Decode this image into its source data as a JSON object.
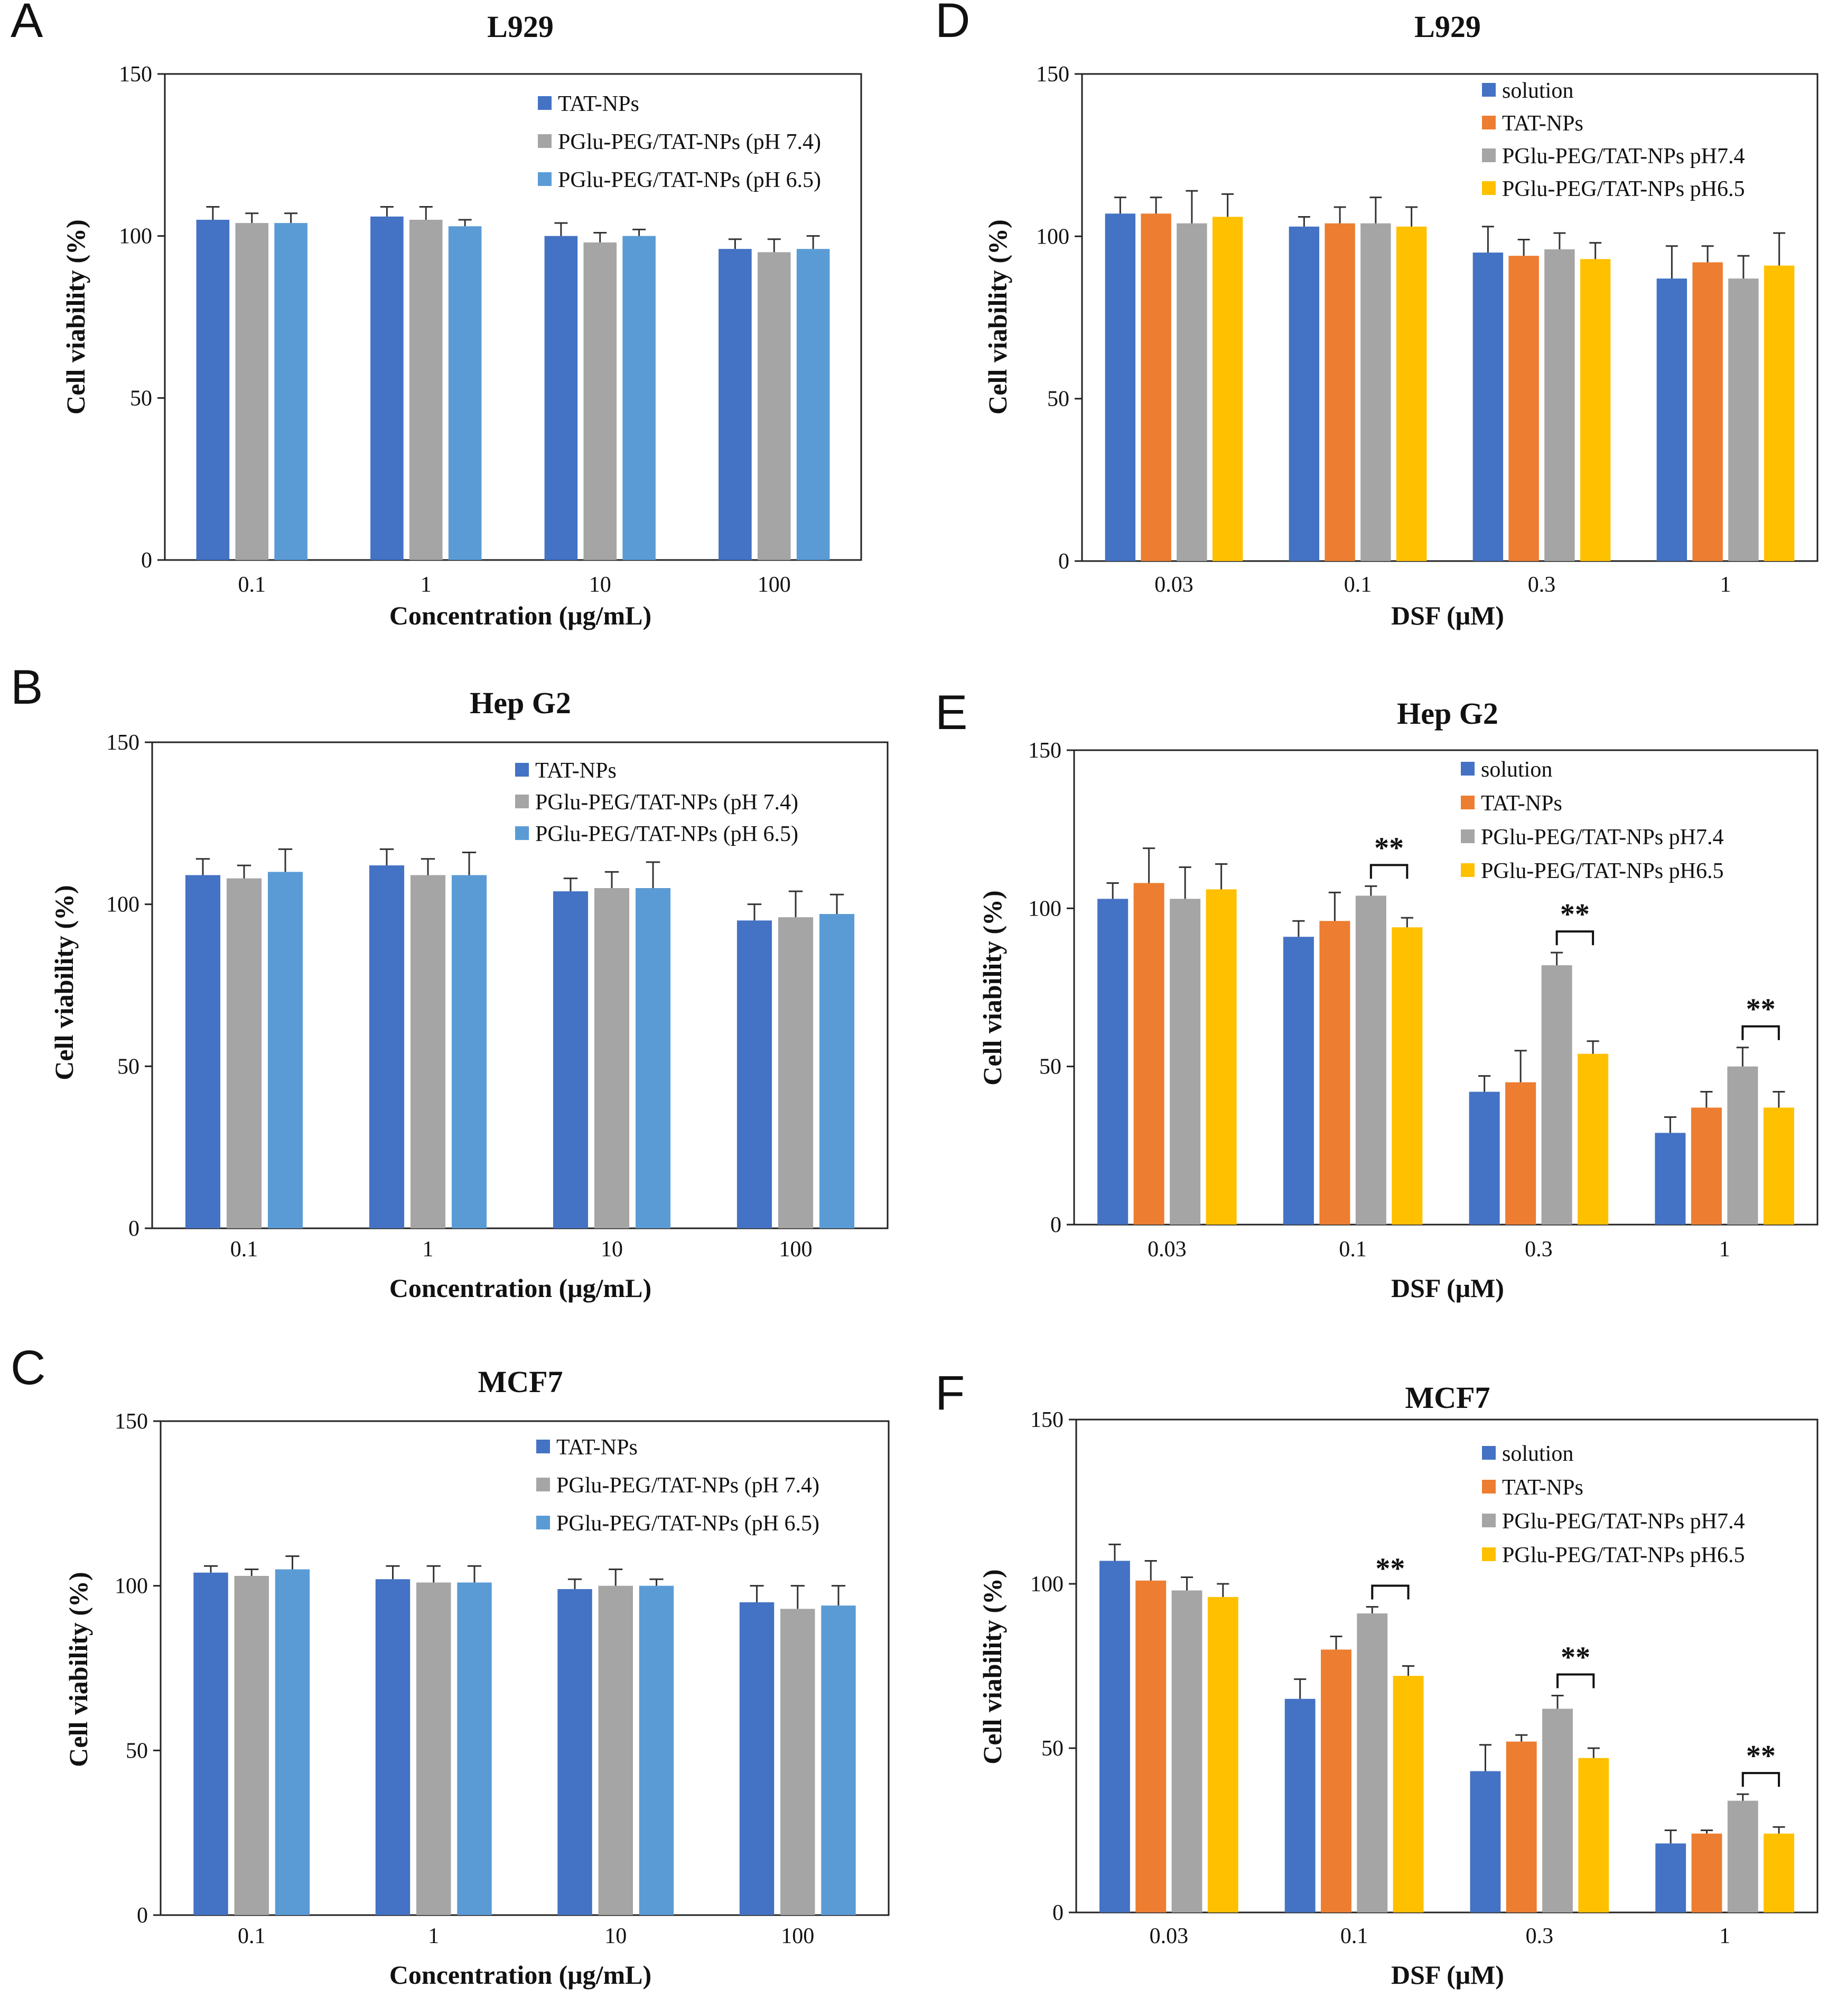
{
  "colors": {
    "solution": "#4472C4",
    "tat": "#4472C4",
    "tat_orange": "#ED7D31",
    "ph74": "#A5A5A5",
    "ph65_blue": "#5B9BD5",
    "ph65_yellow": "#FFC000"
  },
  "chart_data": [
    {
      "id": "A",
      "letter": "A",
      "type": "bar",
      "title": "L929",
      "xlabel": "Concentration (μg/mL)",
      "ylabel": "Cell viability (%)",
      "ylim": [
        0,
        150
      ],
      "yticks": [
        "0",
        "50",
        "100",
        "150"
      ],
      "categories": [
        "0.1",
        "1",
        "10",
        "100"
      ],
      "series": [
        {
          "name": "TAT-NPs",
          "color": "#4472C4",
          "values": [
            105,
            106,
            100,
            96
          ],
          "errors": [
            4,
            3,
            4,
            3
          ]
        },
        {
          "name": "PGlu-PEG/TAT-NPs (pH 7.4)",
          "color": "#A5A5A5",
          "values": [
            104,
            105,
            98,
            95
          ],
          "errors": [
            3,
            4,
            3,
            4
          ]
        },
        {
          "name": "PGlu-PEG/TAT-NPs (pH 6.5)",
          "color": "#5B9BD5",
          "values": [
            104,
            103,
            100,
            96
          ],
          "errors": [
            3,
            2,
            2,
            4
          ]
        }
      ],
      "significance": []
    },
    {
      "id": "B",
      "letter": "B",
      "type": "bar",
      "title": "Hep G2",
      "xlabel": "Concentration (μg/mL)",
      "ylabel": "Cell viability (%)",
      "ylim": [
        0,
        150
      ],
      "yticks": [
        "0",
        "50",
        "100",
        "150"
      ],
      "categories": [
        "0.1",
        "1",
        "10",
        "100"
      ],
      "series": [
        {
          "name": "TAT-NPs",
          "color": "#4472C4",
          "values": [
            109,
            112,
            104,
            95
          ],
          "errors": [
            5,
            5,
            4,
            5
          ]
        },
        {
          "name": "PGlu-PEG/TAT-NPs (pH 7.4)",
          "color": "#A5A5A5",
          "values": [
            108,
            109,
            105,
            96
          ],
          "errors": [
            4,
            5,
            5,
            8
          ]
        },
        {
          "name": "PGlu-PEG/TAT-NPs (pH 6.5)",
          "color": "#5B9BD5",
          "values": [
            110,
            109,
            105,
            97
          ],
          "errors": [
            7,
            7,
            8,
            6
          ]
        }
      ],
      "significance": []
    },
    {
      "id": "C",
      "letter": "C",
      "type": "bar",
      "title": "MCF7",
      "xlabel": "Concentration (μg/mL)",
      "ylabel": "Cell viability (%)",
      "ylim": [
        0,
        150
      ],
      "yticks": [
        "0",
        "50",
        "100",
        "150"
      ],
      "categories": [
        "0.1",
        "1",
        "10",
        "100"
      ],
      "series": [
        {
          "name": "TAT-NPs",
          "color": "#4472C4",
          "values": [
            104,
            102,
            99,
            95
          ],
          "errors": [
            2,
            4,
            3,
            5
          ]
        },
        {
          "name": "PGlu-PEG/TAT-NPs (pH 7.4)",
          "color": "#A5A5A5",
          "values": [
            103,
            101,
            100,
            93
          ],
          "errors": [
            2,
            5,
            5,
            7
          ]
        },
        {
          "name": "PGlu-PEG/TAT-NPs (pH 6.5)",
          "color": "#5B9BD5",
          "values": [
            105,
            101,
            100,
            94
          ],
          "errors": [
            4,
            5,
            2,
            6
          ]
        }
      ],
      "significance": []
    },
    {
      "id": "D",
      "letter": "D",
      "type": "bar",
      "title": "L929",
      "xlabel": "DSF (μM)",
      "ylabel": "Cell viability (%)",
      "ylim": [
        0,
        150
      ],
      "yticks": [
        "0",
        "50",
        "100",
        "150"
      ],
      "categories": [
        "0.03",
        "0.1",
        "0.3",
        "1"
      ],
      "series": [
        {
          "name": "solution",
          "color": "#4472C4",
          "values": [
            107,
            103,
            95,
            87
          ],
          "errors": [
            5,
            3,
            8,
            10
          ]
        },
        {
          "name": "TAT-NPs",
          "color": "#ED7D31",
          "values": [
            107,
            104,
            94,
            92
          ],
          "errors": [
            5,
            5,
            5,
            5
          ]
        },
        {
          "name": "PGlu-PEG/TAT-NPs pH7.4",
          "color": "#A5A5A5",
          "values": [
            104,
            104,
            96,
            87
          ],
          "errors": [
            10,
            8,
            5,
            7
          ]
        },
        {
          "name": "PGlu-PEG/TAT-NPs pH6.5",
          "color": "#FFC000",
          "values": [
            106,
            103,
            93,
            91
          ],
          "errors": [
            7,
            6,
            5,
            10
          ]
        }
      ],
      "significance": []
    },
    {
      "id": "E",
      "letter": "E",
      "type": "bar",
      "title": "Hep G2",
      "xlabel": "DSF (μM)",
      "ylabel": "Cell viability (%)",
      "ylim": [
        0,
        150
      ],
      "yticks": [
        "0",
        "50",
        "100",
        "150"
      ],
      "categories": [
        "0.03",
        "0.1",
        "0.3",
        "1"
      ],
      "series": [
        {
          "name": "solution",
          "color": "#4472C4",
          "values": [
            103,
            91,
            42,
            29
          ],
          "errors": [
            5,
            5,
            5,
            5
          ]
        },
        {
          "name": "TAT-NPs",
          "color": "#ED7D31",
          "values": [
            108,
            96,
            45,
            37
          ],
          "errors": [
            11,
            9,
            10,
            5
          ]
        },
        {
          "name": "PGlu-PEG/TAT-NPs pH7.4",
          "color": "#A5A5A5",
          "values": [
            103,
            104,
            82,
            50
          ],
          "errors": [
            10,
            3,
            4,
            6
          ]
        },
        {
          "name": "PGlu-PEG/TAT-NPs pH6.5",
          "color": "#FFC000",
          "values": [
            106,
            94,
            54,
            37
          ],
          "errors": [
            8,
            3,
            4,
            5
          ]
        }
      ],
      "significance": [
        {
          "category": 1,
          "from": 2,
          "to": 3,
          "label": "**"
        },
        {
          "category": 2,
          "from": 2,
          "to": 3,
          "label": "**"
        },
        {
          "category": 3,
          "from": 2,
          "to": 3,
          "label": "**"
        }
      ]
    },
    {
      "id": "F",
      "letter": "F",
      "type": "bar",
      "title": "MCF7",
      "xlabel": "DSF (μM)",
      "ylabel": "Cell viability (%)",
      "ylim": [
        0,
        150
      ],
      "yticks": [
        "0",
        "50",
        "100",
        "150"
      ],
      "categories": [
        "0.03",
        "0.1",
        "0.3",
        "1"
      ],
      "series": [
        {
          "name": "solution",
          "color": "#4472C4",
          "values": [
            107,
            65,
            43,
            21
          ],
          "errors": [
            5,
            6,
            8,
            4
          ]
        },
        {
          "name": "TAT-NPs",
          "color": "#ED7D31",
          "values": [
            101,
            80,
            52,
            24
          ],
          "errors": [
            6,
            4,
            2,
            1
          ]
        },
        {
          "name": "PGlu-PEG/TAT-NPs pH7.4",
          "color": "#A5A5A5",
          "values": [
            98,
            91,
            62,
            34
          ],
          "errors": [
            4,
            2,
            4,
            2
          ]
        },
        {
          "name": "PGlu-PEG/TAT-NPs pH6.5",
          "color": "#FFC000",
          "values": [
            96,
            72,
            47,
            24
          ],
          "errors": [
            4,
            3,
            3,
            2
          ]
        }
      ],
      "significance": [
        {
          "category": 1,
          "from": 2,
          "to": 3,
          "label": "**"
        },
        {
          "category": 2,
          "from": 2,
          "to": 3,
          "label": "**"
        },
        {
          "category": 3,
          "from": 2,
          "to": 3,
          "label": "**"
        }
      ]
    }
  ]
}
